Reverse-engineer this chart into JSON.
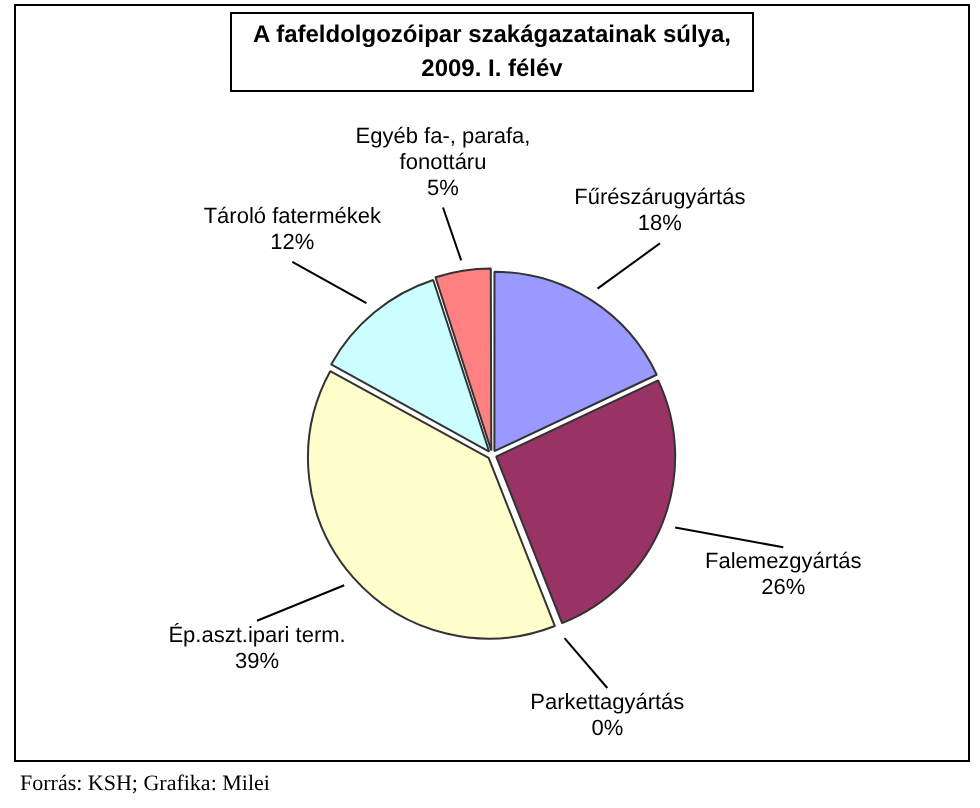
{
  "chart_data": {
    "type": "pie",
    "title": "A fafeldolgozóipar szakágazatainak súlya, 2009. I. félév",
    "categories": [
      "Fűrészárugyártás",
      "Falemezgyártás",
      "Parkettagyártás",
      "Ép.aszt.ipari term.",
      "Tároló fatermékek",
      "Egyéb fa-, parafa, fonottáru"
    ],
    "values": [
      18,
      26,
      0,
      39,
      12,
      5
    ],
    "colors": [
      "#9999ff",
      "#993366",
      "#008080",
      "#ffffcc",
      "#ccffff",
      "#ff8080"
    ],
    "value_labels": [
      "18%",
      "26%",
      "0%",
      "39%",
      "12%",
      "5%"
    ],
    "annotations": [
      "Forrás: KSH; Grafika: Milei"
    ]
  }
}
